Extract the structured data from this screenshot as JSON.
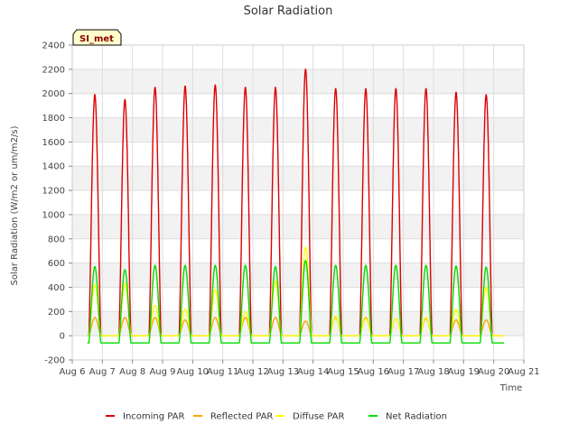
{
  "chart_data": {
    "type": "line",
    "title": "Solar Radiation",
    "xlabel": "Time",
    "ylabel": "Solar Radiation (W/m2 or um/m2/s)",
    "site_label": "SI_met",
    "xlim": [
      6,
      21
    ],
    "ylim": [
      -200,
      2400
    ],
    "yticks": [
      -200,
      0,
      200,
      400,
      600,
      800,
      1000,
      1200,
      1400,
      1600,
      1800,
      2000,
      2200,
      2400
    ],
    "xticks": [
      {
        "value": 6,
        "label": "Aug 6"
      },
      {
        "value": 7,
        "label": "Aug 7"
      },
      {
        "value": 8,
        "label": "Aug 8"
      },
      {
        "value": 9,
        "label": "Aug 9"
      },
      {
        "value": 10,
        "label": "Aug 10"
      },
      {
        "value": 11,
        "label": "Aug 11"
      },
      {
        "value": 12,
        "label": "Aug 12"
      },
      {
        "value": 13,
        "label": "Aug 13"
      },
      {
        "value": 14,
        "label": "Aug 14"
      },
      {
        "value": 15,
        "label": "Aug 15"
      },
      {
        "value": 16,
        "label": "Aug 16"
      },
      {
        "value": 17,
        "label": "Aug 17"
      },
      {
        "value": 18,
        "label": "Aug 18"
      },
      {
        "value": 19,
        "label": "Aug 19"
      },
      {
        "value": 20,
        "label": "Aug 20"
      },
      {
        "value": 21,
        "label": "Aug 21"
      }
    ],
    "grid": true,
    "legend_position": "bottom",
    "day_start": 6.5,
    "day_centers": [
      6.75,
      7.75,
      8.75,
      9.75,
      10.75,
      11.75,
      12.75,
      13.75,
      14.75,
      15.75,
      16.75,
      17.75,
      18.75,
      19.75
    ],
    "half_width_days": 0.2,
    "series": [
      {
        "name": "Incoming PAR",
        "color": "#dd0000",
        "night": 0,
        "peaks": [
          1990,
          1950,
          2050,
          2060,
          2070,
          2050,
          2050,
          2200,
          2040,
          2040,
          2040,
          2040,
          2010,
          1990
        ]
      },
      {
        "name": "Reflected PAR",
        "color": "#ffa500",
        "night": 0,
        "peaks": [
          150,
          150,
          150,
          130,
          150,
          150,
          150,
          120,
          150,
          150,
          140,
          140,
          130,
          130
        ]
      },
      {
        "name": "Diffuse PAR",
        "color": "#ffff00",
        "night": 0,
        "peaks": [
          420,
          430,
          250,
          220,
          380,
          200,
          450,
          730,
          160,
          140,
          140,
          150,
          220,
          400
        ]
      },
      {
        "name": "Net Radiation",
        "color": "#00dd00",
        "night": -60,
        "peaks": [
          570,
          545,
          580,
          580,
          580,
          580,
          570,
          620,
          580,
          580,
          580,
          580,
          575,
          565
        ]
      }
    ]
  }
}
